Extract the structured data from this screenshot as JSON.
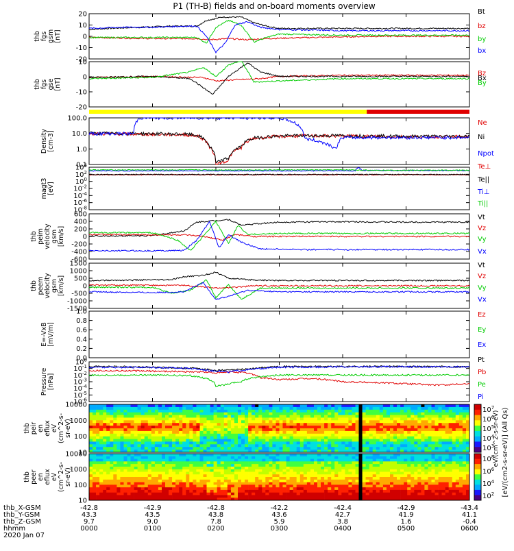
{
  "title": "P1 (TH-B) fields and on-board moments overview",
  "date": "2020 Jan 07",
  "orbit_rows": [
    {
      "label": "thb_X-GSM",
      "values": [
        "-42.8",
        "-42.9",
        "-42.8",
        "-42.2",
        "-42.4",
        "-42.9",
        "-43.4"
      ]
    },
    {
      "label": "thb_Y-GSM",
      "values": [
        "43.3",
        "43.5",
        "43.8",
        "43.6",
        "42.7",
        "41.9",
        "41.1"
      ]
    },
    {
      "label": "thb_Z-GSM",
      "values": [
        "9.7",
        "9.0",
        "7.8",
        "5.9",
        "3.8",
        "1.6",
        "-0.4"
      ]
    },
    {
      "label": "hhmm",
      "values": [
        "0000",
        "0100",
        "0200",
        "0300",
        "0400",
        "0500",
        "0600"
      ]
    }
  ],
  "colorbar_label": "[eV/(cm2-s-sr-eV)] (All Qs)",
  "colorbar_label_top": "eV/(cm^2-s-sr-eV)",
  "colors": {
    "black": "#000000",
    "red": "#e00000",
    "green": "#00cc00",
    "blue": "#0000ff",
    "yellow": "#ffff00"
  },
  "chart_data": [
    {
      "type": "line",
      "id": "fgs_gsm",
      "ylabel": [
        "thb",
        "fgs",
        "gsm",
        "[nT]"
      ],
      "ylim": [
        -20,
        20
      ],
      "yticks": [
        "20",
        "10",
        "0",
        "-10",
        "-20"
      ],
      "series": [
        {
          "name": "Bt",
          "color": "#000000",
          "x": [
            0,
            0.3,
            0.8,
            1.3,
            1.7,
            1.85,
            2.1,
            2.4,
            2.6,
            2.8,
            3.0,
            4.0,
            5.0,
            6.0
          ],
          "y": [
            6,
            7,
            8,
            9,
            9,
            14,
            17,
            17,
            12,
            9,
            7,
            7,
            7,
            7
          ]
        },
        {
          "name": "bz",
          "color": "#e00000",
          "x": [
            0,
            1,
            1.7,
            1.9,
            2.2,
            2.5,
            2.8,
            3.5,
            4.5,
            6.0
          ],
          "y": [
            -1,
            -2,
            -2,
            -3,
            -2,
            -3,
            -2,
            -1,
            0,
            0
          ]
        },
        {
          "name": "by",
          "color": "#00cc00",
          "x": [
            0,
            1,
            1.7,
            1.85,
            2.0,
            2.2,
            2.4,
            2.6,
            2.8,
            3.0,
            4.0,
            5.0,
            6.0
          ],
          "y": [
            -1,
            -1,
            -1,
            -6,
            8,
            14,
            10,
            -5,
            -1,
            2,
            1,
            1,
            1
          ]
        },
        {
          "name": "bx",
          "color": "#0000ff",
          "x": [
            0,
            0.5,
            1.0,
            1.5,
            1.7,
            1.85,
            2.0,
            2.15,
            2.3,
            2.5,
            2.7,
            3.0,
            4.0,
            5.0,
            6.0
          ],
          "y": [
            7,
            8,
            8,
            9,
            9,
            0,
            -14,
            -6,
            10,
            13,
            8,
            6,
            5,
            5,
            5
          ]
        }
      ]
    },
    {
      "type": "line",
      "id": "fgs_gse",
      "ylabel": [
        "thb",
        "fgs",
        "gse",
        "[nT]"
      ],
      "ylim": [
        -25,
        15
      ],
      "yticks": [
        "10",
        "0",
        "-10",
        "-20"
      ],
      "series": [
        {
          "name": "Bz",
          "color": "#e00000",
          "x": [
            0,
            1,
            1.8,
            2.0,
            2.3,
            2.7,
            3.0,
            4.0,
            5.0,
            6.0
          ],
          "y": [
            1,
            2,
            1,
            -2,
            -1,
            0,
            2,
            3,
            3,
            3
          ]
        },
        {
          "name": "Bx",
          "color": "#000000",
          "x": [
            0,
            1,
            1.6,
            1.8,
            1.95,
            2.2,
            2.5,
            2.7,
            3.0,
            4.0,
            6.0
          ],
          "y": [
            1,
            2,
            0,
            -8,
            -14,
            2,
            14,
            6,
            2,
            2,
            2
          ]
        },
        {
          "name": "By",
          "color": "#00cc00",
          "x": [
            0,
            1,
            1.6,
            1.8,
            2.0,
            2.2,
            2.4,
            2.6,
            3.0,
            4.0,
            6.0
          ],
          "y": [
            0,
            1,
            6,
            10,
            2,
            12,
            16,
            -3,
            -2,
            0,
            0
          ]
        }
      ]
    },
    {
      "type": "line",
      "id": "density",
      "log": true,
      "ylabel": [
        "Density",
        "[cm-3]"
      ],
      "ylim": [
        0.05,
        200
      ],
      "yticks": [
        "100.0",
        "10.0",
        "1.0",
        "0.1"
      ],
      "series": [
        {
          "name": "Ne",
          "color": "#e00000",
          "x": [
            0,
            1.5,
            1.7,
            1.9,
            2.0,
            2.2,
            2.4,
            2.5,
            2.6,
            2.9,
            3.3,
            4.0,
            5.0,
            6.0
          ],
          "y": [
            12,
            10,
            8,
            1,
            0.05,
            0.1,
            1,
            3,
            5,
            7,
            8,
            8,
            7,
            7
          ]
        },
        {
          "name": "Ni",
          "color": "#000000",
          "x": [
            0,
            1.5,
            1.7,
            1.9,
            2.0,
            2.2,
            2.4,
            2.5,
            2.6,
            2.9,
            3.3,
            4.0,
            5.0,
            6.0
          ],
          "y": [
            13,
            11,
            9,
            1.2,
            0.06,
            0.15,
            1.2,
            3.5,
            5.5,
            7.5,
            8.5,
            8.5,
            7.5,
            7.5
          ]
        },
        {
          "name": "Npot",
          "color": "#0000ff",
          "x": [
            0,
            0.7,
            0.8,
            2.6,
            3.0,
            3.4,
            3.9,
            4.0,
            6.0
          ],
          "y": [
            12,
            12,
            200,
            200,
            200,
            5,
            0.7,
            6,
            6
          ]
        }
      ]
    },
    {
      "type": "line",
      "id": "mom_temp",
      "log": true,
      "ylabel": [
        "magt3",
        "[eV]"
      ],
      "ylim": [
        1e-09,
        10000
      ],
      "yticks": [
        "10^4",
        "10^2",
        "10^0",
        "10^-2",
        "10^-4",
        "10^-6",
        "10^-8"
      ],
      "series": [
        {
          "name": "Te⊥",
          "color": "#e00000",
          "x": [
            0,
            6
          ],
          "y": [
            50,
            50
          ]
        },
        {
          "name": "Te||",
          "color": "#000000",
          "x": [
            0,
            6
          ],
          "y": [
            60,
            60
          ]
        },
        {
          "name": "Ti⊥",
          "color": "#0000ff",
          "x": [
            0,
            4.2,
            4.25,
            4.3,
            6.0
          ],
          "y": [
            800,
            800,
            8000,
            1000,
            1000
          ]
        },
        {
          "name": "Ti||",
          "color": "#00cc00",
          "x": [
            0,
            4.2,
            4.3,
            6.0
          ],
          "y": [
            1500,
            1500,
            1200,
            1200
          ]
        }
      ]
    },
    {
      "type": "line",
      "id": "peim_velocity",
      "ylabel": [
        "thb",
        "peim",
        "velocity",
        "gsm",
        "[km/s]"
      ],
      "ylim": [
        -600,
        600
      ],
      "yticks": [
        "600",
        "400",
        "200",
        "0",
        "-200",
        "-400",
        "-600"
      ],
      "series": [
        {
          "name": "Vt",
          "color": "#000000",
          "x": [
            0,
            1.0,
            1.5,
            1.7,
            2.0,
            2.2,
            2.4,
            3.0,
            4.0,
            5.0,
            6.0
          ],
          "y": [
            10,
            20,
            150,
            380,
            420,
            450,
            300,
            380,
            390,
            380,
            380
          ]
        },
        {
          "name": "Vz",
          "color": "#e00000",
          "x": [
            0,
            1.5,
            1.8,
            2.1,
            2.3,
            2.6,
            4.0,
            6.0
          ],
          "y": [
            50,
            40,
            0,
            -100,
            50,
            0,
            0,
            0
          ]
        },
        {
          "name": "Vy",
          "color": "#00cc00",
          "x": [
            0,
            1.0,
            1.4,
            1.6,
            1.8,
            2.0,
            2.2,
            2.35,
            2.5,
            3.0,
            6.0
          ],
          "y": [
            100,
            100,
            -100,
            -380,
            0,
            400,
            -200,
            300,
            50,
            80,
            80
          ]
        },
        {
          "name": "Vx",
          "color": "#0000ff",
          "x": [
            0,
            1.0,
            1.5,
            1.7,
            1.9,
            2.05,
            2.2,
            2.4,
            2.7,
            3.5,
            6.0
          ],
          "y": [
            -380,
            -380,
            -370,
            -100,
            400,
            -300,
            50,
            -150,
            -330,
            -350,
            -350
          ]
        }
      ]
    },
    {
      "type": "line",
      "id": "peem_velocity",
      "ylabel": [
        "thb",
        "peem",
        "velocity",
        "gsm",
        "[km/s]"
      ],
      "ylim": [
        -1500,
        1500
      ],
      "yticks": [
        "1500",
        "1000",
        "500",
        "0",
        "-500",
        "-1000",
        "-1500"
      ],
      "series": [
        {
          "name": "Vt",
          "color": "#000000",
          "x": [
            0,
            1.3,
            1.5,
            1.8,
            2.0,
            2.2,
            2.5,
            3.0,
            6.0
          ],
          "y": [
            350,
            400,
            600,
            700,
            900,
            500,
            400,
            350,
            350
          ]
        },
        {
          "name": "Vz",
          "color": "#e00000",
          "x": [
            0,
            1.5,
            2.0,
            2.3,
            2.6,
            6.0
          ],
          "y": [
            50,
            30,
            -150,
            -100,
            0,
            0
          ]
        },
        {
          "name": "Vy",
          "color": "#00cc00",
          "x": [
            0,
            1.0,
            1.3,
            1.6,
            1.85,
            2.0,
            2.2,
            2.4,
            2.7,
            6.0
          ],
          "y": [
            -100,
            -100,
            -500,
            -300,
            400,
            -800,
            100,
            -900,
            -150,
            -150
          ]
        },
        {
          "name": "Vx",
          "color": "#0000ff",
          "x": [
            0,
            1.0,
            1.5,
            1.8,
            2.0,
            2.2,
            2.5,
            3.0,
            6.0
          ],
          "y": [
            -400,
            -450,
            -400,
            200,
            -900,
            -700,
            -300,
            -400,
            -400
          ]
        }
      ]
    },
    {
      "type": "line",
      "id": "efield",
      "ylabel": [
        "E=-VxB",
        "[mV/m]"
      ],
      "ylim": [
        0,
        1.0
      ],
      "yticks": [
        "1.0",
        "0.8",
        "0.6",
        "0.4",
        "0.2",
        "0.0"
      ],
      "series": [
        {
          "name": "Ez",
          "color": "#e00000",
          "x": [],
          "y": []
        },
        {
          "name": "Ey",
          "color": "#00cc00",
          "x": [],
          "y": []
        },
        {
          "name": "Ex",
          "color": "#0000ff",
          "x": [],
          "y": []
        }
      ]
    },
    {
      "type": "line",
      "id": "pressure",
      "log": true,
      "ylabel": [
        "Pressure",
        "[nPa]"
      ],
      "ylim": [
        1e-06,
        1
      ],
      "yticks": [
        "10^0",
        "10^-1",
        "10^-2",
        "10^-3",
        "10^-4",
        "10^-5",
        "10^-6"
      ],
      "series": [
        {
          "name": "Pt",
          "color": "#000000",
          "x": [
            0,
            0.5,
            1.0,
            1.7,
            2.0,
            2.3,
            2.6,
            3.0,
            4.0,
            5.0,
            6.0
          ],
          "y": [
            0.2,
            0.2,
            0.15,
            0.1,
            0.05,
            0.06,
            0.1,
            0.2,
            0.2,
            0.2,
            0.18
          ]
        },
        {
          "name": "Pb",
          "color": "#e00000",
          "x": [
            0,
            1.0,
            1.8,
            2.0,
            2.3,
            2.5,
            2.7,
            3.0,
            3.5,
            4.0,
            4.4,
            5.0,
            5.5,
            6.0
          ],
          "y": [
            0.05,
            0.04,
            0.03,
            0.02,
            0.03,
            0.02,
            0.004,
            0.002,
            0.003,
            0.001,
            0.0008,
            0.0005,
            0.0003,
            0.0005
          ]
        },
        {
          "name": "Pe",
          "color": "#00cc00",
          "x": [
            0,
            1.0,
            1.6,
            1.9,
            2.0,
            2.2,
            2.4,
            2.6,
            3.0,
            4.0,
            6.0
          ],
          "y": [
            0.01,
            0.01,
            0.008,
            0.002,
            0.0002,
            0.0004,
            0.001,
            0.004,
            0.01,
            0.01,
            0.01
          ]
        },
        {
          "name": "Pi",
          "color": "#0000ff",
          "x": [
            0,
            1.0,
            1.6,
            1.9,
            2.2,
            2.5,
            3.0,
            4.0,
            6.0
          ],
          "y": [
            0.15,
            0.15,
            0.1,
            0.05,
            0.03,
            0.06,
            0.15,
            0.18,
            0.18
          ]
        }
      ]
    },
    {
      "type": "heatmap",
      "id": "peir_en_eflux",
      "ylabel": [
        "thb",
        "peir",
        "en",
        "eflux",
        "eV",
        "(cm^2-s-",
        "sr-eV)"
      ],
      "yticks": [
        "10000",
        "1000",
        "100",
        "10"
      ],
      "colorbar_ticks": [
        "10^7",
        "10^6",
        "10^5",
        "10^4",
        "10^3"
      ]
    },
    {
      "type": "heatmap",
      "id": "peer_en_eflux",
      "ylabel": [
        "thb",
        "peer",
        "en",
        "eflux",
        "eV",
        "(cm^2-s-",
        "sr-eV)"
      ],
      "yticks": [
        "10000",
        "1000",
        "100",
        "10"
      ],
      "colorbar_ticks": [
        "10^8",
        "10^6",
        "10^4",
        "10^2"
      ]
    }
  ]
}
